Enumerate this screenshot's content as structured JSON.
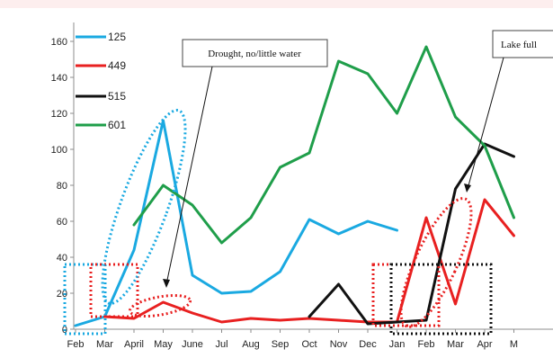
{
  "chart_data": {
    "type": "line",
    "title": "",
    "xlabel": "",
    "ylabel": "",
    "ylim": [
      0,
      160
    ],
    "yticks": [
      0,
      20,
      40,
      60,
      80,
      100,
      120,
      140,
      160
    ],
    "categories": [
      "Feb",
      "Mar",
      "April",
      "May",
      "June",
      "Jul",
      "Aug",
      "Sep",
      "Oct",
      "Nov",
      "Dec",
      "Jan",
      "Feb",
      "Mar",
      "Apr",
      "M"
    ],
    "grid": false,
    "legend_position": "top-left",
    "series": [
      {
        "name": "125",
        "color": "#1aa9e1",
        "values": [
          2,
          7,
          44,
          116,
          30,
          20,
          21,
          32,
          61,
          53,
          60,
          55,
          null,
          null,
          null,
          null
        ]
      },
      {
        "name": "449",
        "color": "#e82020",
        "values": [
          null,
          7,
          6,
          15,
          9,
          4,
          6,
          5,
          6,
          5,
          4,
          4,
          62,
          14,
          72,
          52
        ]
      },
      {
        "name": "515",
        "color": "#111111",
        "values": [
          null,
          null,
          null,
          null,
          null,
          null,
          null,
          null,
          7,
          25,
          3,
          4,
          5,
          78,
          103,
          96
        ]
      },
      {
        "name": "601",
        "color": "#1f9e4a",
        "values": [
          null,
          null,
          58,
          80,
          69,
          48,
          62,
          90,
          98,
          149,
          142,
          120,
          157,
          118,
          102,
          62
        ]
      }
    ],
    "annotations": [
      {
        "text": "Drought, no/little water"
      },
      {
        "text": "Lake full"
      }
    ]
  }
}
